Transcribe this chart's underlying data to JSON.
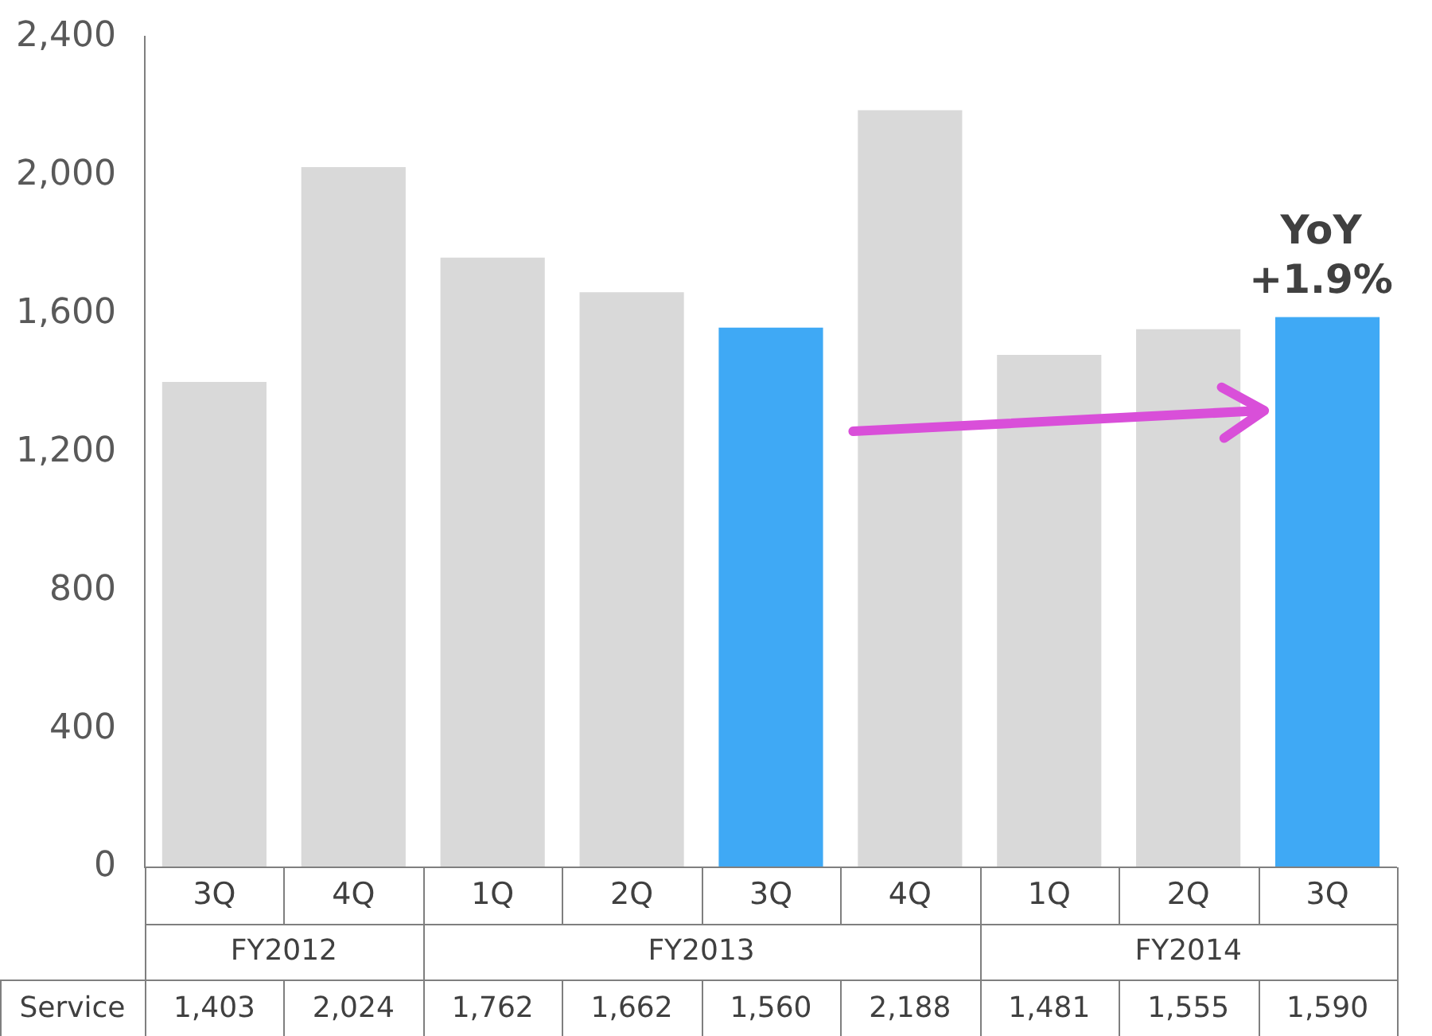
{
  "chart_data": {
    "type": "bar",
    "categories": [
      "3Q",
      "4Q",
      "1Q",
      "2Q",
      "3Q",
      "4Q",
      "1Q",
      "2Q",
      "3Q"
    ],
    "series": [
      {
        "name": "Service",
        "colors": [
          "#d9d9d9",
          "#d9d9d9",
          "#d9d9d9",
          "#d9d9d9",
          "#3fa9f5",
          "#d9d9d9",
          "#d9d9d9",
          "#d9d9d9",
          "#3fa9f5"
        ],
        "values": [
          1403,
          2024,
          1762,
          1662,
          1560,
          2188,
          1481,
          1555,
          1590
        ],
        "value_labels": [
          "1,403",
          "2,024",
          "1,762",
          "1,662",
          "1,560",
          "2,188",
          "1,481",
          "1,555",
          "1,590"
        ]
      }
    ],
    "ylim": [
      0,
      2400
    ],
    "yticks": [
      0,
      400,
      800,
      {
        "value": 1200,
        "label": "1,200"
      },
      {
        "value": 1600,
        "label": "1,600"
      },
      {
        "value": 2000,
        "label": "2,000"
      },
      {
        "value": 2400,
        "label": "2,400"
      }
    ],
    "grid": false,
    "legend": false,
    "annotations": [
      "FY2012",
      "FY2013",
      "FY2014",
      "YoY\n+1.9%"
    ]
  }
}
